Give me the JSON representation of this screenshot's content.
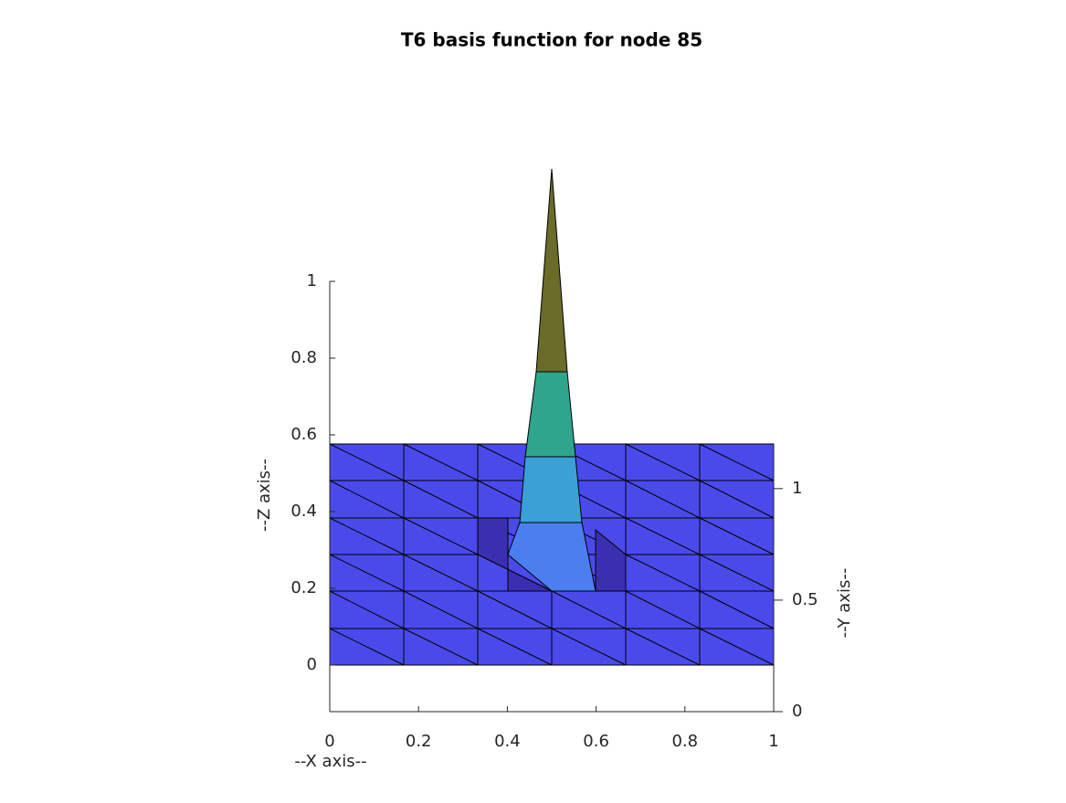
{
  "chart_data": {
    "type": "surface",
    "title": "T6 basis function for node 85",
    "xlabel": "--X axis--",
    "ylabel": "--Y axis--",
    "zlabel": "--Z axis--",
    "xlim": [
      0,
      1
    ],
    "xticks": [
      0,
      0.2,
      0.4,
      0.6,
      0.8,
      1
    ],
    "ylim": [
      0,
      1.2
    ],
    "yticks": [
      0,
      0.5,
      1
    ],
    "zlim": [
      -0.12,
      1
    ],
    "zticks": [
      0,
      0.2,
      0.4,
      0.6,
      0.8,
      1
    ],
    "color": "#4a4aeb"
  }
}
